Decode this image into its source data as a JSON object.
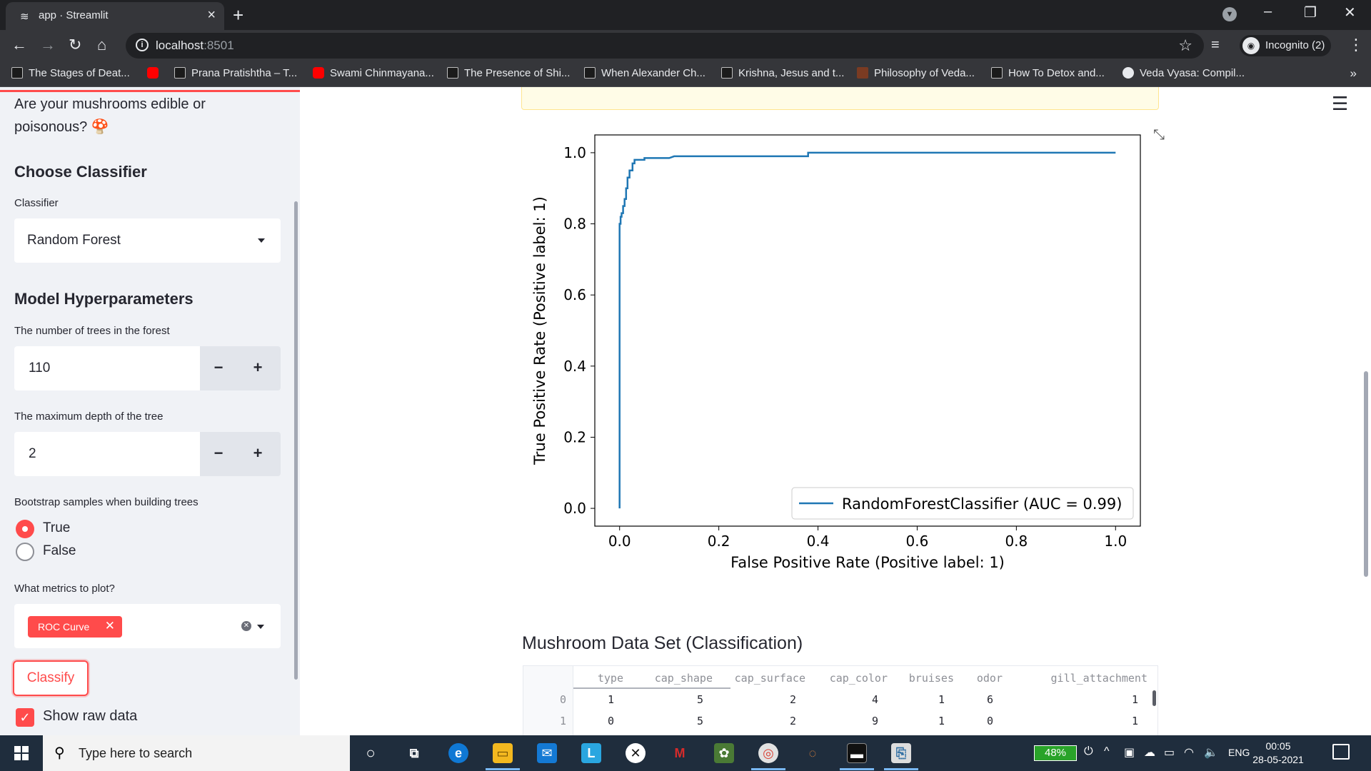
{
  "browser": {
    "tab_title": "app · Streamlit",
    "url_host": "localhost",
    "url_port": ":8501",
    "profile_label": "Incognito (2)",
    "bookmarks": [
      {
        "label": "The Stages of Deat...",
        "icon": "wave"
      },
      {
        "label": "",
        "icon": "youtube"
      },
      {
        "label": "Prana Pratishtha – T...",
        "icon": "wave"
      },
      {
        "label": "Swami Chinmayana...",
        "icon": "youtube"
      },
      {
        "label": "The Presence of Shi...",
        "icon": "wave"
      },
      {
        "label": "When Alexander Ch...",
        "icon": "wave"
      },
      {
        "label": "Krishna, Jesus and t...",
        "icon": "wave"
      },
      {
        "label": "Philosophy of Veda...",
        "icon": "image"
      },
      {
        "label": "How To Detox and...",
        "icon": "wave"
      },
      {
        "label": "Veda Vyasa: Compil...",
        "icon": "globe"
      }
    ],
    "more_bookmarks": "»"
  },
  "sidebar": {
    "intro_line1": "Are your mushrooms edible or",
    "intro_line2": "poisonous? 🍄",
    "choose_classifier_heading": "Choose Classifier",
    "classifier_label": "Classifier",
    "classifier_value": "Random Forest",
    "hyperparams_heading": "Model Hyperparameters",
    "n_trees_label": "The number of trees in the forest",
    "n_trees_value": "110",
    "max_depth_label": "The maximum depth of the tree",
    "max_depth_value": "2",
    "stepper_minus": "−",
    "stepper_plus": "+",
    "bootstrap_label": "Bootstrap samples when building trees",
    "bootstrap_options": [
      "True",
      "False"
    ],
    "bootstrap_selected": "True",
    "metrics_label": "What metrics to plot?",
    "metrics_selected": [
      "ROC Curve"
    ],
    "classify_button": "Classify",
    "show_raw_label": "Show raw data",
    "show_raw_checked": true
  },
  "main": {
    "dataset_title": "Mushroom Data Set (Classification)",
    "table": {
      "columns": [
        "",
        "type",
        "cap_shape",
        "cap_surface",
        "cap_color",
        "bruises",
        "odor",
        "gill_attachment"
      ],
      "rows": [
        [
          "0",
          "1",
          "5",
          "2",
          "4",
          "1",
          "6",
          "1"
        ],
        [
          "1",
          "0",
          "5",
          "2",
          "9",
          "1",
          "0",
          "1"
        ]
      ]
    }
  },
  "chart_data": {
    "type": "line",
    "title": "",
    "xlabel": "False Positive Rate (Positive label: 1)",
    "ylabel": "True Positive Rate (Positive label: 1)",
    "xlim": [
      -0.05,
      1.05
    ],
    "ylim": [
      -0.05,
      1.05
    ],
    "xticks": [
      "0.0",
      "0.2",
      "0.4",
      "0.6",
      "0.8",
      "1.0"
    ],
    "yticks": [
      "0.0",
      "0.2",
      "0.4",
      "0.6",
      "0.8",
      "1.0"
    ],
    "legend_location": "lower right",
    "series": [
      {
        "name": "RandomForestClassifier (AUC = 0.99)",
        "color": "#1f77b4",
        "x": [
          0.0,
          0.0,
          0.0,
          0.002,
          0.002,
          0.004,
          0.004,
          0.007,
          0.007,
          0.01,
          0.01,
          0.013,
          0.013,
          0.016,
          0.016,
          0.02,
          0.02,
          0.026,
          0.026,
          0.03,
          0.03,
          0.05,
          0.05,
          0.1,
          0.11,
          0.38,
          0.38,
          0.6,
          1.0
        ],
        "y": [
          0.0,
          0.78,
          0.8,
          0.8,
          0.82,
          0.82,
          0.83,
          0.83,
          0.85,
          0.85,
          0.87,
          0.87,
          0.9,
          0.9,
          0.93,
          0.93,
          0.95,
          0.95,
          0.97,
          0.97,
          0.98,
          0.98,
          0.985,
          0.985,
          0.99,
          0.99,
          1.0,
          1.0,
          1.0
        ]
      }
    ]
  },
  "taskbar": {
    "search_placeholder": "Type here to search",
    "battery": "48%",
    "language": "ENG",
    "time": "00:05",
    "date": "28-05-2021"
  },
  "colors": {
    "accent": "#ff4b4b",
    "sidebar_bg": "#f0f2f6",
    "roc_line": "#1f77b4"
  }
}
